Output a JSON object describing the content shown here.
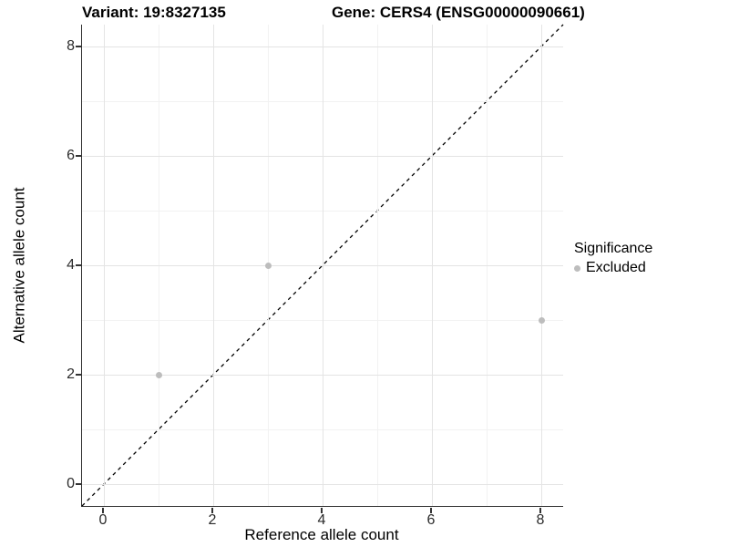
{
  "header": {
    "variant_title": "Variant: 19:8327135",
    "gene_title": "Gene: CERS4 (ENSG00000090661)"
  },
  "legend": {
    "title": "Significance",
    "items": [
      {
        "label": "Excluded",
        "color": "#bdbdbd"
      }
    ]
  },
  "colors": {
    "background": "#ffffff",
    "axis_line": "#333333",
    "grid_major": "#e4e4e4",
    "grid_minor": "#f2f2f2",
    "point_excluded": "#bdbdbd",
    "reference_line": "#000000",
    "tick_label": "#2b2b2b"
  },
  "chart_data": {
    "type": "scatter",
    "title": "Variant: 19:8327135   Gene: CERS4 (ENSG00000090661)",
    "xlabel": "Reference allele count",
    "ylabel": "Alternative allele count",
    "xlim": [
      -0.4,
      8.4
    ],
    "ylim": [
      -0.4,
      8.4
    ],
    "xticks": [
      0,
      2,
      4,
      6,
      8
    ],
    "yticks": [
      0,
      2,
      4,
      6,
      8
    ],
    "minor_gridlines_x": [
      1,
      3,
      5,
      7
    ],
    "minor_gridlines_y": [
      1,
      3,
      5,
      7
    ],
    "grid": true,
    "legend_position": "right",
    "series": [
      {
        "name": "Excluded",
        "color": "#bdbdbd",
        "points": [
          [
            1,
            2
          ],
          [
            3,
            4
          ],
          [
            8,
            3
          ]
        ]
      }
    ],
    "reference_line": {
      "type": "identity_y_equals_x",
      "style": "dashed",
      "color": "#000000",
      "dash": [
        4,
        4
      ]
    }
  }
}
